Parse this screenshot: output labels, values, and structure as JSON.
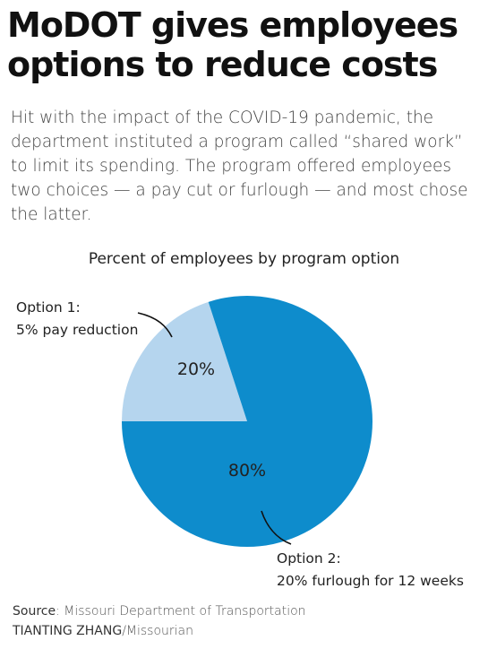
{
  "headline": "MoDOT gives employees options to reduce costs",
  "dek": "Hit with the impact of the COVID-19 pandemic, the department instituted a program called “shared work” to limit its spending. The program offered employees two choices — a pay cut or furlough — and most chose the latter.",
  "chart_data": {
    "type": "pie",
    "title": "Percent of employees by program option",
    "slices": [
      {
        "label_line1": "Option 1:",
        "label_line2": "5% pay reduction",
        "value": 20,
        "value_label": "20%",
        "color": "#b5d5ee"
      },
      {
        "label_line1": "Option 2:",
        "label_line2": "20% furlough for 12 weeks",
        "value": 80,
        "value_label": "80%",
        "color": "#0e8ccc"
      }
    ]
  },
  "footer": {
    "source_label": "Source",
    "source_text": ": Missouri Department of Transportation",
    "credit_name": "TIANTING ZHANG",
    "credit_outlet": "/Missourian"
  }
}
